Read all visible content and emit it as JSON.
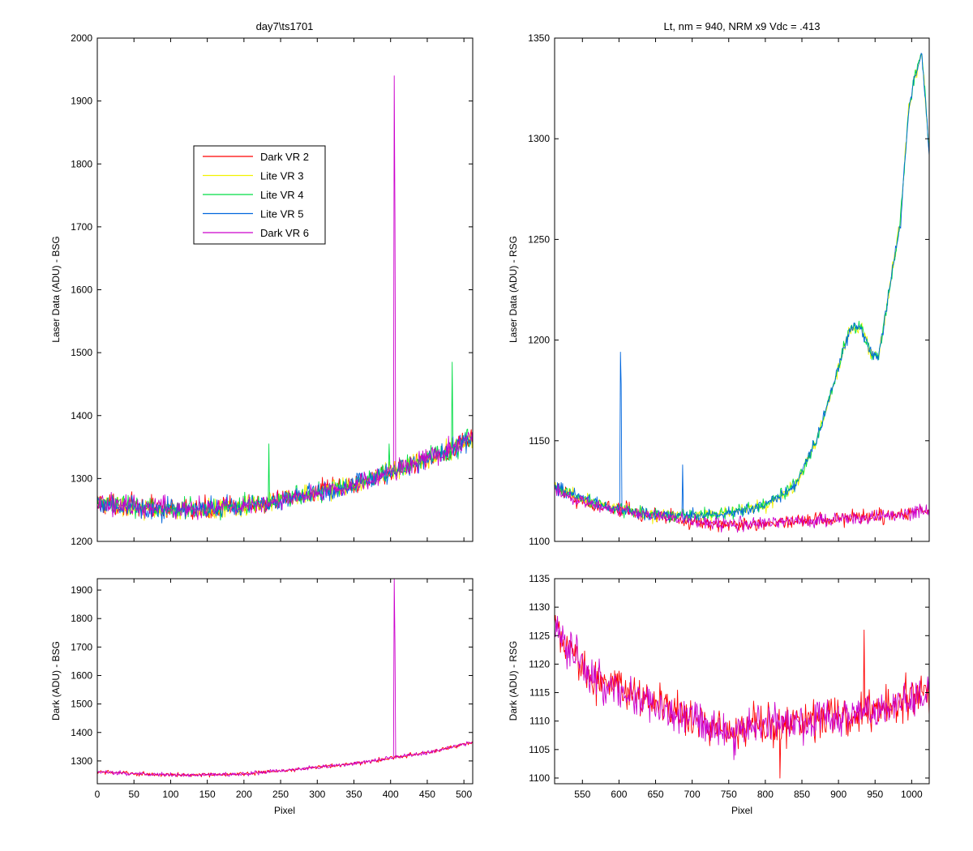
{
  "colors": {
    "Dark VR 2": "#ff0000",
    "Lite VR 3": "#f2f200",
    "Lite VR 4": "#00dd44",
    "Lite VR 5": "#0066dd",
    "Dark VR 6": "#cc00cc"
  },
  "chart_data": [
    {
      "id": "top-left",
      "type": "line",
      "title": "day7\\ts1701",
      "xlabel": "",
      "ylabel": "Laser Data (ADU) - BSG",
      "xlim": [
        0,
        512
      ],
      "ylim": [
        1200,
        2000
      ],
      "xticks": [
        0,
        50,
        100,
        150,
        200,
        250,
        300,
        350,
        400,
        450,
        500
      ],
      "xtick_labels_shown": false,
      "yticks": [
        1200,
        1300,
        1400,
        1500,
        1600,
        1700,
        1800,
        1900,
        2000
      ],
      "legend": {
        "placement": "upper-left-inside",
        "entries": [
          "Dark VR 2",
          "Lite VR 3",
          "Lite VR 4",
          "Lite VR 5",
          "Dark VR 6"
        ]
      },
      "series": [
        {
          "name": "Dark VR 2",
          "baseline": "bsg",
          "noise": 16,
          "spikes": []
        },
        {
          "name": "Lite VR 3",
          "baseline": "bsg",
          "noise": 16,
          "spikes": []
        },
        {
          "name": "Lite VR 4",
          "baseline": "bsg",
          "noise": 16,
          "spikes": [
            [
              234,
              1355
            ],
            [
              398,
              1355
            ],
            [
              484,
              1485
            ]
          ]
        },
        {
          "name": "Lite VR 5",
          "baseline": "bsg",
          "noise": 16,
          "spikes": []
        },
        {
          "name": "Dark VR 6",
          "baseline": "bsg",
          "noise": 16,
          "spikes": [
            [
              405,
              1940
            ],
            [
              406,
              1715
            ]
          ]
        }
      ]
    },
    {
      "id": "top-right",
      "type": "line",
      "title": "Lt, nm = 940, NRM x9 Vdc = .413",
      "xlabel": "",
      "ylabel": "Laser Data (ADU) - RSG",
      "xlim": [
        512,
        1024
      ],
      "ylim": [
        1100,
        1350
      ],
      "xticks": [
        550,
        600,
        650,
        700,
        750,
        800,
        850,
        900,
        950,
        1000
      ],
      "xtick_labels_shown": false,
      "yticks": [
        1100,
        1150,
        1200,
        1250,
        1300,
        1350
      ],
      "series": [
        {
          "name": "Dark VR 2",
          "baseline": "rsg_dark",
          "noise": 3.5,
          "spikes": []
        },
        {
          "name": "Lite VR 3",
          "baseline": "rsg_lite",
          "noise": 3,
          "spikes": []
        },
        {
          "name": "Lite VR 4",
          "baseline": "rsg_lite",
          "noise": 3,
          "spikes": []
        },
        {
          "name": "Lite VR 5",
          "baseline": "rsg_lite",
          "noise": 3,
          "spikes": [
            [
              602,
              1194
            ],
            [
              603,
              1178
            ],
            [
              687,
              1138
            ]
          ]
        },
        {
          "name": "Dark VR 6",
          "baseline": "rsg_dark",
          "noise": 3.5,
          "spikes": []
        }
      ]
    },
    {
      "id": "bottom-left",
      "type": "line",
      "title": "",
      "xlabel": "Pixel",
      "ylabel": "Dark (ADU) - BSG",
      "xlim": [
        0,
        512
      ],
      "ylim": [
        1220,
        1940
      ],
      "xticks": [
        0,
        50,
        100,
        150,
        200,
        250,
        300,
        350,
        400,
        450,
        500
      ],
      "xtick_labels_shown": true,
      "yticks": [
        1300,
        1400,
        1500,
        1600,
        1700,
        1800,
        1900
      ],
      "series": [
        {
          "name": "Dark VR 2",
          "baseline": "bsg",
          "noise": 7,
          "spikes": []
        },
        {
          "name": "Dark VR 6",
          "baseline": "bsg",
          "noise": 7,
          "spikes": [
            [
              405,
              1940
            ],
            [
              406,
              1715
            ]
          ]
        }
      ]
    },
    {
      "id": "bottom-right",
      "type": "line",
      "title": "",
      "xlabel": "Pixel",
      "ylabel": "Dark (ADU) - RSG",
      "xlim": [
        512,
        1024
      ],
      "ylim": [
        1099,
        1135
      ],
      "xticks": [
        550,
        600,
        650,
        700,
        750,
        800,
        850,
        900,
        950,
        1000
      ],
      "xtick_labels_shown": true,
      "yticks": [
        1100,
        1105,
        1110,
        1115,
        1120,
        1125,
        1130,
        1135
      ],
      "series": [
        {
          "name": "Dark VR 2",
          "baseline": "rsg_dark",
          "noise": 3.5,
          "spikes": [
            [
              820,
              1100
            ],
            [
              935,
              1126
            ]
          ]
        },
        {
          "name": "Dark VR 6",
          "baseline": "rsg_dark",
          "noise": 3.5,
          "spikes": []
        }
      ]
    }
  ]
}
